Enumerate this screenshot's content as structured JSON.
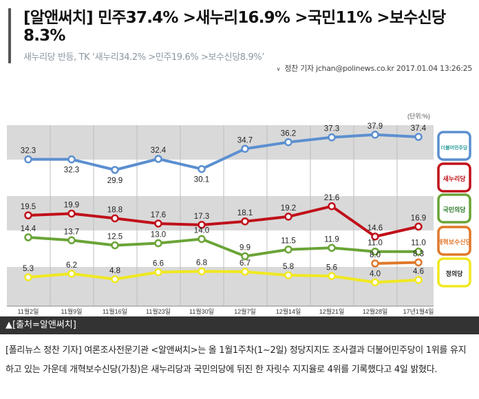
{
  "article": {
    "title": "[알앤써치] 민주37.4% >새누리16.9% >국민11% >보수신당 8.3%",
    "subtitle": "새누리당 반등, TK ‘새누리34.2% >민주19.6% >보수신당8.9%’",
    "byline": {
      "reporter": "정찬 기자",
      "email": "jchan@polinews.co.kr",
      "datetime": "2017.01.04 13:26:25"
    },
    "caption": "▲[출처=알앤써치]",
    "body": "[폴리뉴스 정찬 기자] 여론조사전문기관 <알앤써치>는 올 1월1주차(1~2일) 정당지지도 조사결과 더불어민주당이 1위를 유지하고 있는 가운데 개혁보수신당(가칭)은 새누리당과 국민의당에 뒤진 한 자릿수 지지율로 4위를 기록했다고 4일 밝혔다."
  },
  "chart_data": {
    "type": "line",
    "unit_label": "(단위:%)",
    "categories": [
      "11월2일",
      "11월9일",
      "11월16일",
      "11월23일",
      "11월30일",
      "12월7일",
      "12월14일",
      "12월21일",
      "12월28일",
      "17년1월4일"
    ],
    "series": [
      {
        "name": "더불어민주당",
        "color": "#5b8fd0",
        "values": [
          32.3,
          32.3,
          29.9,
          32.4,
          30.1,
          34.7,
          36.2,
          37.3,
          37.9,
          37.4
        ]
      },
      {
        "name": "새누리당",
        "color": "#c0101a",
        "values": [
          19.5,
          19.9,
          18.8,
          17.6,
          17.3,
          18.1,
          19.2,
          21.6,
          14.6,
          16.9
        ]
      },
      {
        "name": "국민의당",
        "color": "#6aa437",
        "values": [
          14.4,
          13.7,
          12.5,
          13.0,
          14.0,
          9.9,
          11.5,
          11.9,
          11.0,
          11.0
        ]
      },
      {
        "name": "개혁보수신당",
        "color": "#e0782a",
        "values": [
          null,
          null,
          null,
          null,
          null,
          null,
          null,
          null,
          8.0,
          8.3
        ]
      },
      {
        "name": "정의당",
        "color": "#f0e820",
        "values": [
          5.3,
          6.2,
          4.8,
          6.6,
          6.8,
          6.7,
          5.8,
          5.6,
          4.0,
          4.6
        ]
      }
    ],
    "legend_placement": "right",
    "grid": "vertical lines with alternating horizontal bands"
  }
}
